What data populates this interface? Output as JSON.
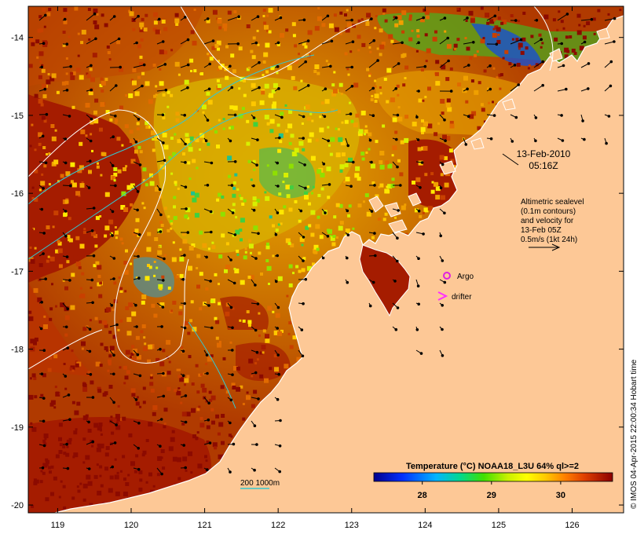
{
  "axes": {
    "x_ticks": [
      "119",
      "120",
      "121",
      "122",
      "123",
      "124",
      "125",
      "126"
    ],
    "y_ticks": [
      "-14",
      "-15",
      "-16",
      "-17",
      "-18",
      "-19",
      "-20"
    ],
    "lon_range": [
      118.6,
      126.7
    ],
    "lat_range": [
      -20.1,
      -13.6
    ]
  },
  "date_label": {
    "line1": "13-Feb-2010",
    "line2": "05:16Z"
  },
  "legend": {
    "lines": [
      "Altimetric sealevel",
      "(0.1m contours)",
      "and velocity for",
      "13-Feb 05Z",
      "0.5m/s (1kt 24h)"
    ],
    "argo_label": "Argo",
    "drifter_label": "drifter"
  },
  "colorbar": {
    "title": "Temperature (°C) NOAA18_L3U 64% ql>=2",
    "ticks": [
      "28",
      "29",
      "30"
    ],
    "tick_values": [
      28,
      29,
      30
    ],
    "range": [
      27.3,
      30.75
    ]
  },
  "isobath": {
    "label": "200  1000m"
  },
  "footer": {
    "credit": "© IMOS 04-Apr-2015 22:00:34 Hobart time"
  },
  "colors": {
    "land": "#fdc896",
    "warm": "#a51c00",
    "contour": "#ffffff",
    "isobath": "#33c8d0",
    "argo": "#e020e0",
    "drifter": "#ff30ff"
  }
}
